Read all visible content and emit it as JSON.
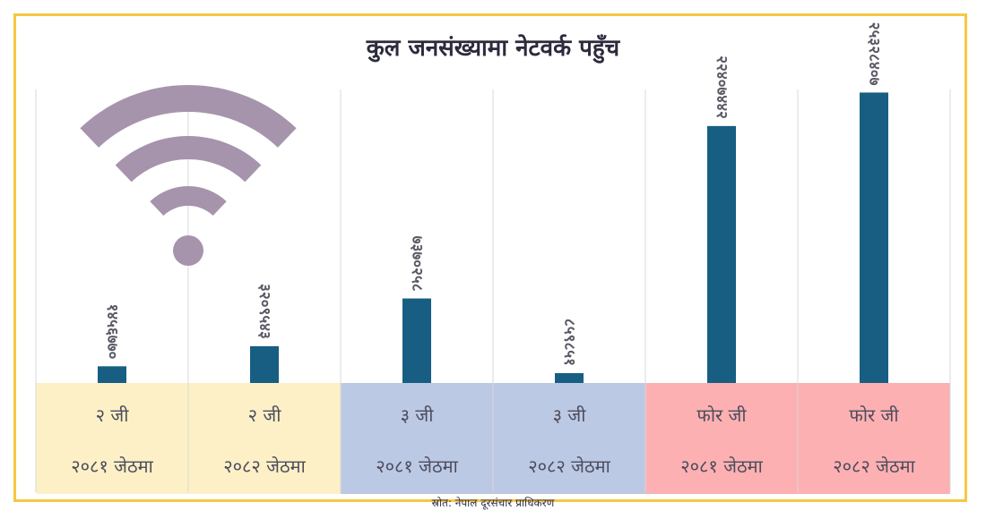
{
  "chart_data": {
    "type": "bar",
    "title": "कुल जनसंख्यामा नेटवर्क पहुँच",
    "categories": [
      {
        "tech": "२ जी",
        "period": "२०८१ जेठमा"
      },
      {
        "tech": "२ जी",
        "period": "२०८२ जेठमा"
      },
      {
        "tech": "३ जी",
        "period": "२०८१ जेठमा"
      },
      {
        "tech": "३ जी",
        "period": "२०८२ जेठमा"
      },
      {
        "tech": "फोर जी",
        "period": "२०८१ जेठमा"
      },
      {
        "tech": "फोर जी",
        "period": "२०८२ जेठमा"
      }
    ],
    "values": [
      1456770,
      3209543,
      7370258,
      859851,
      22407442,
      25328407
    ],
    "value_labels": [
      "१४५६७७०",
      "३२०९५४३",
      "७३७०२५८",
      "८५९८५१",
      "२२४०७४४२",
      "२५३२८४०७"
    ],
    "ylim": [
      0,
      27000000
    ],
    "grid": false,
    "legend": "none",
    "colors": {
      "bar": "#175e82",
      "band_2g": "#fdf0c6",
      "band_3g": "#bcc9e4",
      "band_4g": "#fdb0b2",
      "wifi": "#a694ad",
      "frame": "#f5c842",
      "title": "#2b2b3c",
      "label": "#4c4c5c",
      "gridline": "#d8d8d8"
    },
    "decoration": "wifi-icon"
  },
  "source": "स्रोत: नेपाल दूरसंचार प्राधिकरण"
}
